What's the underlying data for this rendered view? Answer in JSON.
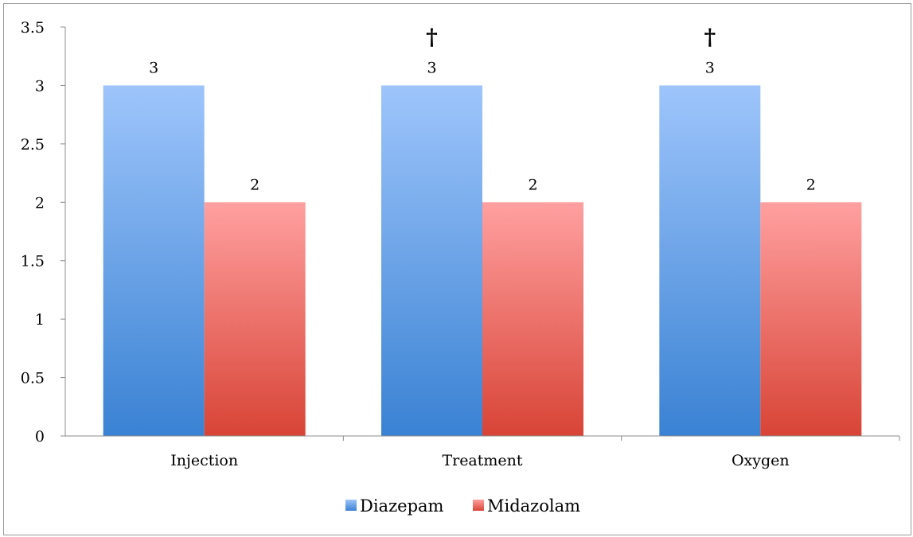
{
  "chart_data": {
    "type": "bar",
    "categories": [
      "Injection",
      "Treatment",
      "Oxygen"
    ],
    "series": [
      {
        "name": "Diazepam",
        "values": [
          3,
          3,
          3
        ],
        "color_top": "#9ec5fb",
        "color_bottom": "#3a82d3"
      },
      {
        "name": "Midazolam",
        "values": [
          2,
          2,
          2
        ],
        "color_top": "#ffa0a0",
        "color_bottom": "#d84436"
      }
    ],
    "data_labels": [
      [
        "3",
        "3",
        "3"
      ],
      [
        "2",
        "2",
        "2"
      ]
    ],
    "annotations": [
      "",
      "†",
      "†"
    ],
    "yticks": [
      "0",
      "0.5",
      "1",
      "1.5",
      "2",
      "2.5",
      "3",
      "3.5"
    ],
    "ylim": [
      0,
      3.5
    ],
    "title": "",
    "xlabel": "",
    "ylabel": "",
    "grid": false,
    "legend": "bottom"
  }
}
